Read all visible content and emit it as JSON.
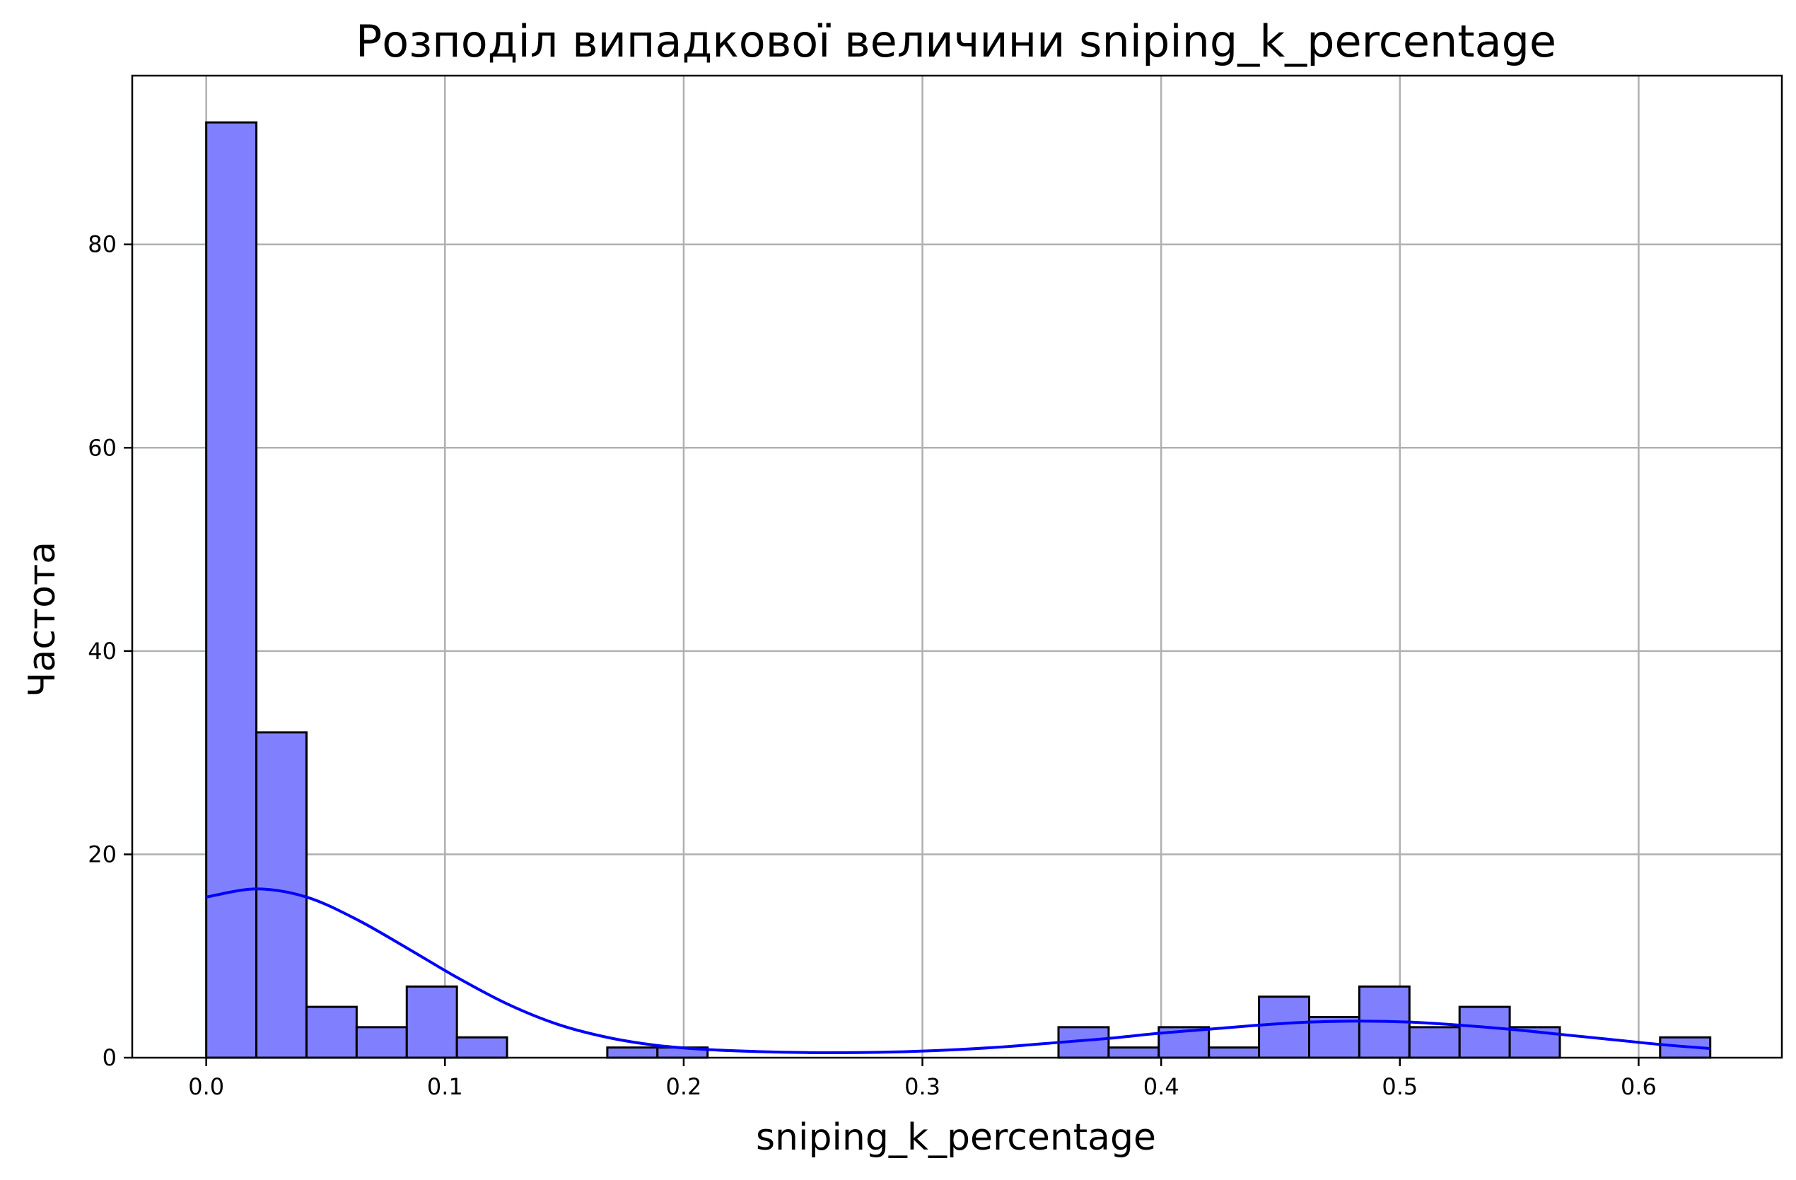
{
  "chart_data": {
    "type": "bar",
    "title": "Розподіл випадкової величини sniping_k_percentage",
    "xlabel": "sniping_k_percentage",
    "ylabel": "Частота",
    "xlim": [
      -0.031,
      0.66
    ],
    "ylim": [
      0,
      96.6
    ],
    "xticks": [
      "0.0",
      "0.1",
      "0.2",
      "0.3",
      "0.4",
      "0.5",
      "0.6"
    ],
    "yticks": [
      "0",
      "20",
      "40",
      "60",
      "80"
    ],
    "grid": true,
    "bin_width": 0.021,
    "bins": [
      {
        "x0": 0.0,
        "count": 92
      },
      {
        "x0": 0.021,
        "count": 32
      },
      {
        "x0": 0.042,
        "count": 5
      },
      {
        "x0": 0.063,
        "count": 3
      },
      {
        "x0": 0.084,
        "count": 7
      },
      {
        "x0": 0.105,
        "count": 2
      },
      {
        "x0": 0.126,
        "count": 0
      },
      {
        "x0": 0.147,
        "count": 0
      },
      {
        "x0": 0.168,
        "count": 1
      },
      {
        "x0": 0.189,
        "count": 1
      },
      {
        "x0": 0.21,
        "count": 0
      },
      {
        "x0": 0.231,
        "count": 0
      },
      {
        "x0": 0.252,
        "count": 0
      },
      {
        "x0": 0.273,
        "count": 0
      },
      {
        "x0": 0.294,
        "count": 0
      },
      {
        "x0": 0.315,
        "count": 0
      },
      {
        "x0": 0.336,
        "count": 0
      },
      {
        "x0": 0.357,
        "count": 3
      },
      {
        "x0": 0.378,
        "count": 1
      },
      {
        "x0": 0.399,
        "count": 3
      },
      {
        "x0": 0.42,
        "count": 1
      },
      {
        "x0": 0.441,
        "count": 6
      },
      {
        "x0": 0.462,
        "count": 4
      },
      {
        "x0": 0.483,
        "count": 7
      },
      {
        "x0": 0.504,
        "count": 3
      },
      {
        "x0": 0.525,
        "count": 5
      },
      {
        "x0": 0.546,
        "count": 3
      },
      {
        "x0": 0.567,
        "count": 0
      },
      {
        "x0": 0.588,
        "count": 0
      },
      {
        "x0": 0.609,
        "count": 2
      }
    ],
    "kde": {
      "x": [
        0.0,
        0.021,
        0.042,
        0.063,
        0.084,
        0.105,
        0.126,
        0.147,
        0.168,
        0.189,
        0.21,
        0.231,
        0.252,
        0.273,
        0.294,
        0.315,
        0.336,
        0.357,
        0.378,
        0.399,
        0.42,
        0.441,
        0.462,
        0.483,
        0.504,
        0.525,
        0.546,
        0.567,
        0.588,
        0.609,
        0.63
      ],
      "y": [
        15.8,
        16.6,
        15.8,
        13.6,
        10.8,
        7.9,
        5.3,
        3.3,
        2.0,
        1.2,
        0.8,
        0.6,
        0.5,
        0.5,
        0.6,
        0.8,
        1.1,
        1.5,
        1.9,
        2.4,
        2.8,
        3.2,
        3.5,
        3.6,
        3.5,
        3.2,
        2.8,
        2.3,
        1.8,
        1.3,
        0.9
      ],
      "color": "#0000ff"
    },
    "colors": {
      "bar_fill": "#8080ff",
      "bar_edge": "#000000",
      "grid": "#b0b0b0"
    }
  }
}
